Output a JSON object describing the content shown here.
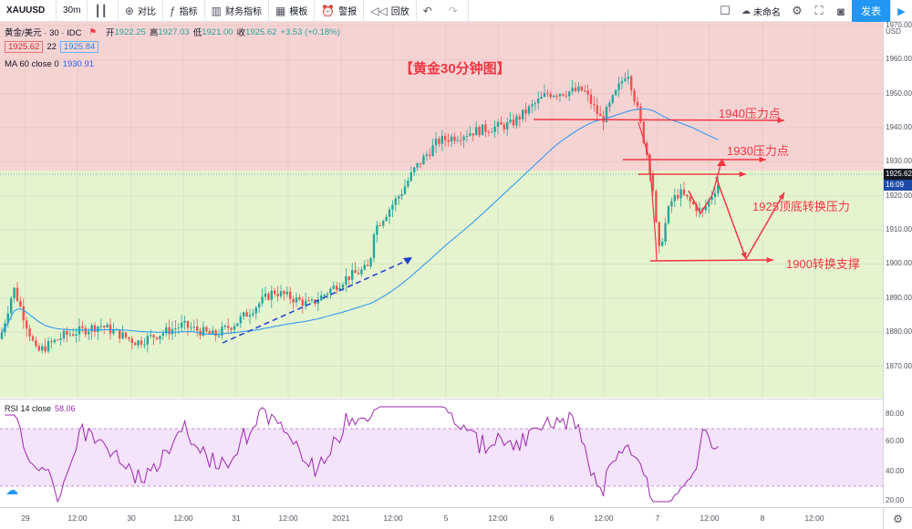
{
  "toolbar": {
    "symbol": "XAUUSD",
    "interval": "30m",
    "compare": "对比",
    "indicators": "指标",
    "financials": "财务指标",
    "templates": "模板",
    "alert": "警报",
    "replay": "回放",
    "layout_name": "未命名",
    "publish": "发表"
  },
  "legend": {
    "name": "黄金/美元 · 30 · IDC",
    "open_label": "开",
    "open": "1922.25",
    "high_label": "高",
    "high": "1927.03",
    "low_label": "低",
    "low": "1921.00",
    "close_label": "收",
    "close": "1925.62",
    "change": "+3.53 (+0.18%)",
    "bid": "1925.62",
    "spread": "22",
    "ask": "1925.84",
    "ma_label": "MA 60 close 0",
    "ma_value": "1930.91"
  },
  "price_axis": {
    "labels": [
      "1970.00",
      "1960.00",
      "1950.00",
      "1940.00",
      "1930.00",
      "1920.00",
      "1910.00",
      "1900.00",
      "1890.00",
      "1880.00",
      "1870.00"
    ],
    "currency": "USD",
    "current_price": "1925.62",
    "countdown": "16:09"
  },
  "rsi": {
    "label": "RSI 14 close",
    "value": "58.06",
    "levels": [
      "80.00",
      "60.00",
      "40.00",
      "20.00"
    ]
  },
  "time_axis": {
    "labels": [
      "29",
      "12:00",
      "30",
      "12:00",
      "31",
      "12:00",
      "2021",
      "12:00",
      "5",
      "12:00",
      "6",
      "12:00",
      "7",
      "12:00",
      "8",
      "12:00"
    ]
  },
  "annotations": {
    "title": "【黄金30分钟图】",
    "r1940": "1940压力点",
    "r1930": "1930压力点",
    "r1925": "1925顶底转换压力",
    "s1900": "1900转换支撑"
  },
  "colors": {
    "up": "#26a69a",
    "down": "#ef5350",
    "ma": "#2196f3",
    "rsi": "#9c27b0",
    "annotation": "#f23645"
  },
  "icons": [
    "candle-icon",
    "plus-circle-icon",
    "fx-icon",
    "bar-chart-icon",
    "template-icon",
    "alarm-icon",
    "rewind-icon",
    "undo-icon",
    "redo-icon",
    "square-icon",
    "cloud-icon",
    "gear-icon",
    "fullscreen-icon",
    "camera-icon",
    "play-icon"
  ]
}
